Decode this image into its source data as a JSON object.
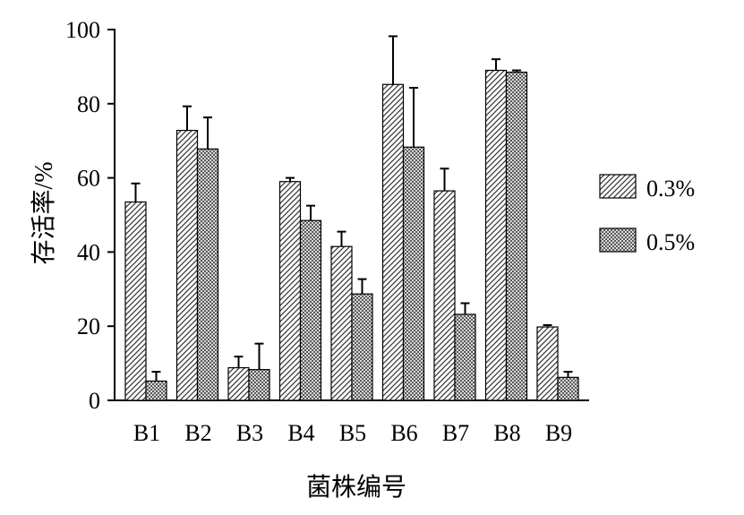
{
  "chart_data": {
    "type": "bar",
    "categories": [
      "B1",
      "B2",
      "B3",
      "B4",
      "B5",
      "B6",
      "B7",
      "B8",
      "B9"
    ],
    "series": [
      {
        "name": "0.3%",
        "values": [
          53.5,
          72.8,
          8.8,
          59.0,
          41.5,
          85.2,
          56.5,
          89.0,
          19.8
        ],
        "errors": [
          5.0,
          6.5,
          3.0,
          1.0,
          4.0,
          13.0,
          6.0,
          3.0,
          0.5
        ],
        "pattern": "diagonal-hatch"
      },
      {
        "name": "0.5%",
        "values": [
          5.2,
          67.8,
          8.3,
          48.5,
          28.7,
          68.3,
          23.2,
          88.5,
          6.2
        ],
        "errors": [
          2.5,
          8.5,
          7.0,
          4.0,
          4.0,
          16.0,
          3.0,
          0.5,
          1.5
        ],
        "pattern": "crosshatch"
      }
    ],
    "xlabel": "菌株编号",
    "ylabel": "存活率/%",
    "ylim": [
      0,
      100
    ],
    "yticks": [
      0,
      20,
      40,
      60,
      80,
      100
    ],
    "grid": false,
    "legend_position": "right",
    "colors": {
      "bar_fill": "#ffffff",
      "pattern_stroke": "#333333",
      "axis": "#000000"
    }
  }
}
